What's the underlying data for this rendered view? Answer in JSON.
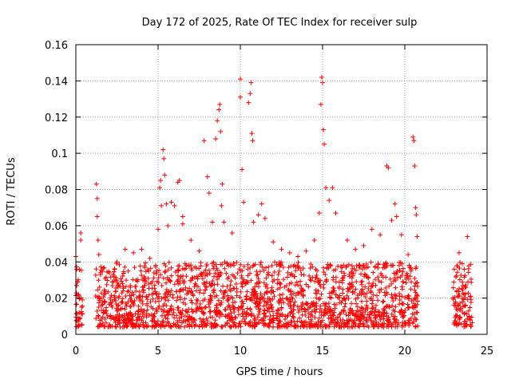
{
  "chart_data": {
    "type": "scatter",
    "title": "Day 172 of 2025, Rate Of TEC Index for receiver sulp",
    "xlabel": "GPS time / hours",
    "ylabel": "ROTI / TECUs",
    "xlim": [
      0,
      25
    ],
    "ylim": [
      0,
      0.16
    ],
    "xticks": [
      "0",
      "5",
      "10",
      "15",
      "20",
      "25"
    ],
    "yticks": [
      "0",
      "0.02",
      "0.04",
      "0.06",
      "0.08",
      "0.1",
      "0.12",
      "0.14",
      "0.16"
    ],
    "grid": true,
    "marker": "+",
    "color": "#ff0000",
    "coverage_hours": [
      [
        0.0,
        0.4
      ],
      [
        1.2,
        20.8
      ],
      [
        22.9,
        24.1
      ]
    ],
    "series": [
      {
        "points": [
          [
            0.0,
            0.043
          ],
          [
            0.05,
            0.036
          ],
          [
            0.1,
            0.029
          ],
          [
            0.15,
            0.022
          ],
          [
            0.2,
            0.012
          ],
          [
            0.25,
            0.009
          ],
          [
            0.3,
            0.052
          ],
          [
            0.3,
            0.056
          ],
          [
            0.35,
            0.015
          ],
          [
            0.4,
            0.019
          ],
          [
            1.25,
            0.083
          ],
          [
            1.3,
            0.075
          ],
          [
            1.3,
            0.065
          ],
          [
            1.35,
            0.052
          ],
          [
            1.4,
            0.044
          ],
          [
            1.5,
            0.033
          ],
          [
            2.5,
            0.04
          ],
          [
            3.0,
            0.047
          ],
          [
            3.5,
            0.045
          ],
          [
            4.0,
            0.047
          ],
          [
            4.5,
            0.042
          ],
          [
            5.0,
            0.058
          ],
          [
            5.1,
            0.081
          ],
          [
            5.15,
            0.085
          ],
          [
            5.2,
            0.071
          ],
          [
            5.3,
            0.102
          ],
          [
            5.35,
            0.097
          ],
          [
            5.4,
            0.088
          ],
          [
            5.5,
            0.072
          ],
          [
            5.6,
            0.06
          ],
          [
            5.8,
            0.073
          ],
          [
            6.0,
            0.071
          ],
          [
            6.2,
            0.084
          ],
          [
            6.3,
            0.085
          ],
          [
            6.5,
            0.065
          ],
          [
            6.5,
            0.061
          ],
          [
            7.0,
            0.052
          ],
          [
            7.5,
            0.046
          ],
          [
            7.8,
            0.107
          ],
          [
            8.0,
            0.087
          ],
          [
            8.1,
            0.078
          ],
          [
            8.3,
            0.062
          ],
          [
            8.5,
            0.108
          ],
          [
            8.6,
            0.118
          ],
          [
            8.7,
            0.124
          ],
          [
            8.75,
            0.127
          ],
          [
            8.8,
            0.112
          ],
          [
            8.85,
            0.071
          ],
          [
            8.9,
            0.083
          ],
          [
            9.0,
            0.062
          ],
          [
            9.5,
            0.056
          ],
          [
            10.0,
            0.141
          ],
          [
            10.0,
            0.131
          ],
          [
            10.1,
            0.091
          ],
          [
            10.2,
            0.073
          ],
          [
            10.5,
            0.128
          ],
          [
            10.6,
            0.133
          ],
          [
            10.65,
            0.139
          ],
          [
            10.7,
            0.111
          ],
          [
            10.75,
            0.107
          ],
          [
            10.8,
            0.062
          ],
          [
            11.1,
            0.066
          ],
          [
            11.3,
            0.072
          ],
          [
            11.5,
            0.064
          ],
          [
            12.0,
            0.051
          ],
          [
            12.5,
            0.047
          ],
          [
            13.0,
            0.045
          ],
          [
            13.5,
            0.043
          ],
          [
            14.0,
            0.046
          ],
          [
            14.5,
            0.052
          ],
          [
            14.8,
            0.067
          ],
          [
            14.9,
            0.127
          ],
          [
            14.95,
            0.142
          ],
          [
            15.0,
            0.139
          ],
          [
            15.05,
            0.113
          ],
          [
            15.1,
            0.105
          ],
          [
            15.2,
            0.081
          ],
          [
            15.4,
            0.074
          ],
          [
            15.6,
            0.081
          ],
          [
            15.8,
            0.067
          ],
          [
            16.5,
            0.052
          ],
          [
            17.0,
            0.047
          ],
          [
            17.5,
            0.049
          ],
          [
            18.0,
            0.058
          ],
          [
            18.5,
            0.055
          ],
          [
            18.9,
            0.093
          ],
          [
            19.0,
            0.092
          ],
          [
            19.2,
            0.063
          ],
          [
            19.4,
            0.072
          ],
          [
            19.5,
            0.065
          ],
          [
            19.8,
            0.055
          ],
          [
            20.2,
            0.044
          ],
          [
            20.5,
            0.109
          ],
          [
            20.55,
            0.107
          ],
          [
            20.6,
            0.093
          ],
          [
            20.65,
            0.07
          ],
          [
            20.7,
            0.066
          ],
          [
            20.75,
            0.054
          ],
          [
            23.3,
            0.045
          ],
          [
            23.8,
            0.054
          ]
        ]
      }
    ]
  }
}
